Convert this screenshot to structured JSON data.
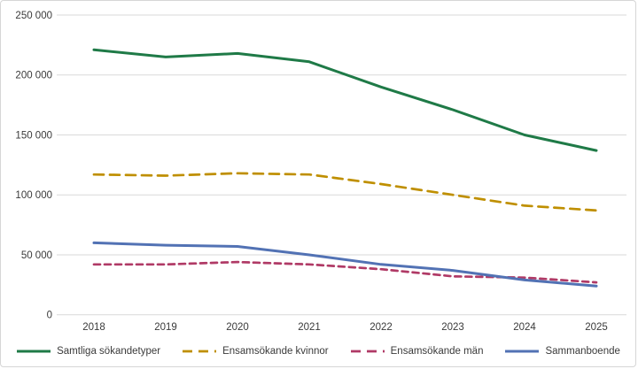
{
  "chart_data": {
    "type": "line",
    "x": [
      2018,
      2019,
      2020,
      2021,
      2022,
      2023,
      2024,
      2025
    ],
    "series": [
      {
        "name": "Samtliga sökandetyper",
        "color": "#1f7a47",
        "dash": "solid",
        "values": [
          221000,
          215000,
          218000,
          211000,
          190000,
          171000,
          150000,
          137000
        ]
      },
      {
        "name": "Ensamsökande kvinnor",
        "color": "#bf8f00",
        "dash": "long-dash",
        "values": [
          117000,
          116000,
          118000,
          117000,
          109000,
          100000,
          91000,
          87000
        ]
      },
      {
        "name": "Ensamsökande män",
        "color": "#b03a66",
        "dash": "short-dash",
        "values": [
          42000,
          42000,
          44000,
          42000,
          38000,
          32000,
          31000,
          27000
        ]
      },
      {
        "name": "Sammanboende",
        "color": "#5272b4",
        "dash": "solid",
        "values": [
          60000,
          58000,
          57000,
          50000,
          42000,
          37000,
          29000,
          24000
        ]
      }
    ],
    "title": "",
    "xlabel": "",
    "ylabel": "",
    "ylim": [
      0,
      250000
    ],
    "ytick_interval": 50000,
    "ytick_labels": [
      "0",
      "50 000",
      "100 000",
      "150 000",
      "200 000",
      "250 000"
    ],
    "xtick_labels": [
      "2018",
      "2019",
      "2020",
      "2021",
      "2022",
      "2023",
      "2024",
      "2025"
    ],
    "grid": "horizontal",
    "gridline_color": "#d9d9d9",
    "legend_position": "bottom"
  }
}
